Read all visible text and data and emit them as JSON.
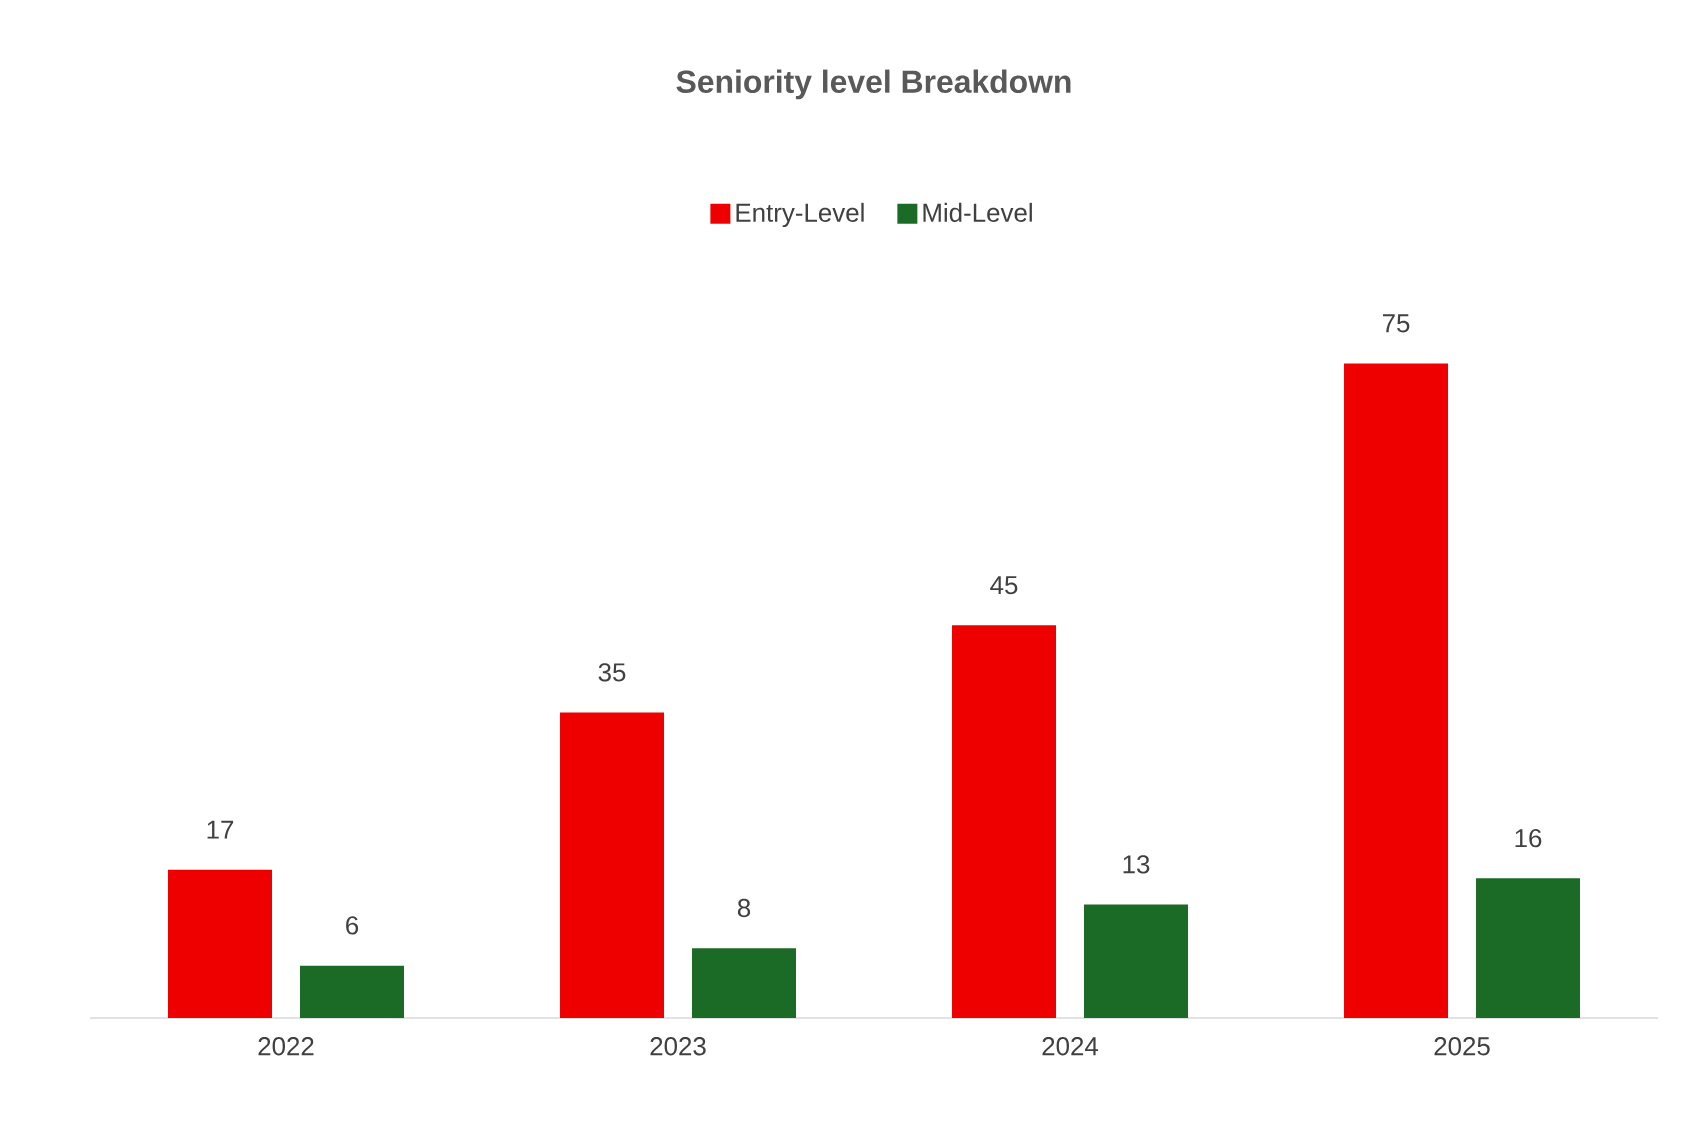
{
  "chart_data": {
    "type": "bar",
    "title": "Seniority level Breakdown",
    "categories": [
      "2022",
      "2023",
      "2024",
      "2025"
    ],
    "series": [
      {
        "name": "Entry-Level",
        "color": "#ee0000",
        "values": [
          17,
          35,
          45,
          75
        ]
      },
      {
        "name": "Mid-Level",
        "color": "#1b6b27",
        "values": [
          6,
          8,
          13,
          16
        ]
      }
    ],
    "data_labels": true,
    "legend": "top"
  }
}
